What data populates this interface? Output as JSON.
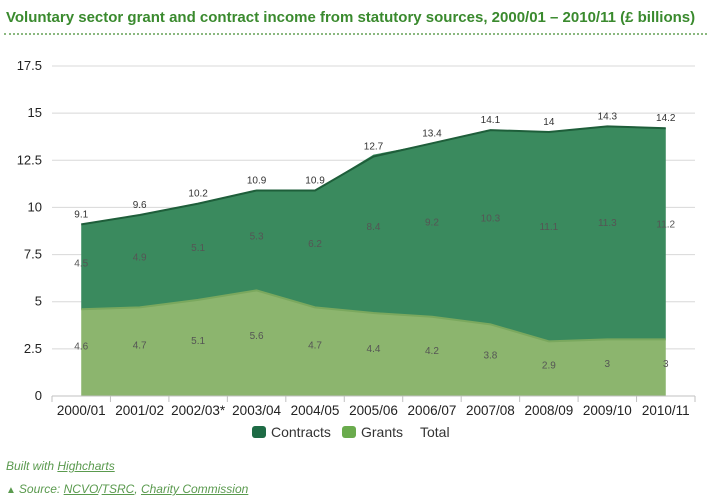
{
  "header": {
    "title": "Voluntary sector grant and contract income from statutory sources, 2000/01 – 2010/11 (£ billions)"
  },
  "footer": {
    "built_with_prefix": "Built with ",
    "built_with_link": "Highcharts",
    "source_prefix": "Source: ",
    "source_link_1": "NCVO",
    "source_sep_1": "/",
    "source_link_2": "TSRC",
    "source_sep_2": ", ",
    "source_link_3": "Charity Commission"
  },
  "chart_data": {
    "type": "area",
    "stacked": true,
    "categories": [
      "2000/01",
      "2001/02",
      "2002/03*",
      "2003/04",
      "2004/05",
      "2005/06",
      "2006/07",
      "2007/08",
      "2008/09",
      "2009/10",
      "2010/11"
    ],
    "series": [
      {
        "name": "Contracts",
        "color": "#3a8a5e",
        "legend_color": "#1e6b45",
        "values": [
          4.5,
          4.9,
          5.1,
          5.3,
          6.2,
          8.4,
          9.2,
          10.3,
          11.1,
          11.3,
          11.2
        ]
      },
      {
        "name": "Grants",
        "color": "#8cb56e",
        "legend_color": "#6aab4d",
        "values": [
          4.6,
          4.7,
          5.1,
          5.6,
          4.7,
          4.4,
          4.2,
          3.8,
          2.9,
          3,
          3
        ]
      },
      {
        "name": "Total",
        "color": "#1e5e3a",
        "values": [
          9.1,
          9.6,
          10.2,
          10.9,
          10.9,
          12.7,
          13.4,
          14.1,
          14,
          14.3,
          14.2
        ]
      }
    ],
    "yticks": [
      "0",
      "2.5",
      "5",
      "7.5",
      "10",
      "12.5",
      "15",
      "17.5"
    ],
    "ylim": [
      0,
      17.5
    ],
    "grid": true,
    "legend_position": "bottom-center"
  }
}
